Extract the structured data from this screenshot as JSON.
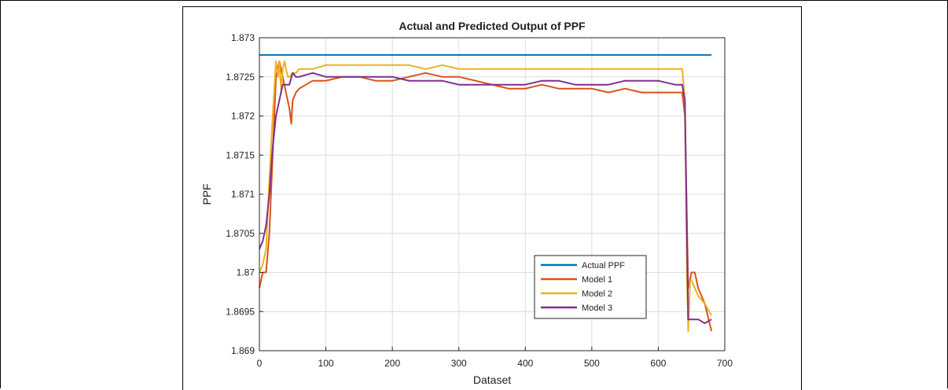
{
  "chart_data": {
    "type": "line",
    "title": "Actual and Predicted Output of PPF",
    "xlabel": "Dataset",
    "ylabel": "PPF",
    "xlim": [
      0,
      700
    ],
    "ylim": [
      1.869,
      1.873
    ],
    "xticks": [
      0,
      100,
      200,
      300,
      400,
      500,
      600,
      700
    ],
    "xtick_labels": [
      "0",
      "100",
      "200",
      "300",
      "400",
      "500",
      "600",
      "700"
    ],
    "yticks": [
      1.869,
      1.8695,
      1.87,
      1.8705,
      1.871,
      1.8715,
      1.872,
      1.8725,
      1.873
    ],
    "ytick_labels": [
      "1.869",
      "1.8695",
      "1.87",
      "1.8705",
      "1.871",
      "1.8715",
      "1.872",
      "1.8725",
      "1.873"
    ],
    "grid": true,
    "legend_position": "lower-right",
    "series": [
      {
        "name": "Actual PPF",
        "color": "#0072BD",
        "x": [
          0,
          680
        ],
        "y": [
          1.87278,
          1.87278
        ]
      },
      {
        "name": "Model 1",
        "color": "#D95319",
        "x": [
          0,
          5,
          10,
          15,
          20,
          25,
          30,
          35,
          40,
          45,
          48,
          50,
          55,
          60,
          70,
          80,
          100,
          125,
          150,
          175,
          200,
          225,
          250,
          275,
          300,
          325,
          350,
          375,
          400,
          425,
          450,
          475,
          500,
          525,
          550,
          575,
          600,
          625,
          636,
          640,
          645,
          650,
          655,
          660,
          670,
          680
        ],
        "y": [
          1.8698,
          1.87,
          1.87,
          1.8705,
          1.8715,
          1.8725,
          1.8727,
          1.8725,
          1.8723,
          1.8721,
          1.8719,
          1.8722,
          1.8723,
          1.87235,
          1.8724,
          1.87245,
          1.87245,
          1.8725,
          1.8725,
          1.87245,
          1.87245,
          1.8725,
          1.87255,
          1.8725,
          1.8725,
          1.87245,
          1.8724,
          1.87235,
          1.87235,
          1.8724,
          1.87235,
          1.87235,
          1.87235,
          1.8723,
          1.87235,
          1.8723,
          1.8723,
          1.8723,
          1.8723,
          1.872,
          1.8698,
          1.87,
          1.87,
          1.8698,
          1.8696,
          1.86925
        ]
      },
      {
        "name": "Model 2",
        "color": "#EDB120",
        "x": [
          0,
          5,
          10,
          15,
          20,
          25,
          28,
          30,
          33,
          35,
          38,
          40,
          43,
          45,
          50,
          55,
          60,
          80,
          100,
          125,
          150,
          175,
          200,
          225,
          250,
          275,
          300,
          325,
          350,
          375,
          400,
          425,
          450,
          475,
          500,
          525,
          550,
          575,
          600,
          625,
          636,
          640,
          643,
          645,
          648,
          650,
          655,
          660,
          670,
          680
        ],
        "y": [
          1.87,
          1.8701,
          1.8703,
          1.8712,
          1.872,
          1.8727,
          1.8725,
          1.8727,
          1.8723,
          1.8726,
          1.8727,
          1.8726,
          1.8725,
          1.8725,
          1.87255,
          1.87255,
          1.8726,
          1.8726,
          1.87265,
          1.87265,
          1.87265,
          1.87265,
          1.87265,
          1.87265,
          1.8726,
          1.87265,
          1.8726,
          1.8726,
          1.8726,
          1.8726,
          1.8726,
          1.8726,
          1.8726,
          1.8726,
          1.8726,
          1.8726,
          1.8726,
          1.8726,
          1.8726,
          1.8726,
          1.8726,
          1.8722,
          1.87,
          1.86925,
          1.8699,
          1.8699,
          1.8698,
          1.8697,
          1.8696,
          1.86945
        ]
      },
      {
        "name": "Model 3",
        "color": "#7E2F8E",
        "x": [
          0,
          5,
          10,
          15,
          20,
          25,
          30,
          35,
          40,
          45,
          50,
          55,
          60,
          80,
          100,
          125,
          150,
          175,
          200,
          225,
          250,
          275,
          300,
          325,
          350,
          375,
          400,
          425,
          450,
          475,
          500,
          525,
          550,
          575,
          600,
          625,
          636,
          640,
          645,
          650,
          660,
          670,
          680
        ],
        "y": [
          1.8703,
          1.8704,
          1.8706,
          1.871,
          1.8716,
          1.872,
          1.8722,
          1.8724,
          1.8724,
          1.8724,
          1.87255,
          1.8725,
          1.8725,
          1.87255,
          1.8725,
          1.8725,
          1.8725,
          1.8725,
          1.8725,
          1.87245,
          1.87245,
          1.87245,
          1.8724,
          1.8724,
          1.8724,
          1.8724,
          1.8724,
          1.87245,
          1.87245,
          1.8724,
          1.8724,
          1.8724,
          1.87245,
          1.87245,
          1.87245,
          1.8724,
          1.8724,
          1.8722,
          1.8694,
          1.8694,
          1.8694,
          1.86935,
          1.8694
        ]
      }
    ]
  }
}
